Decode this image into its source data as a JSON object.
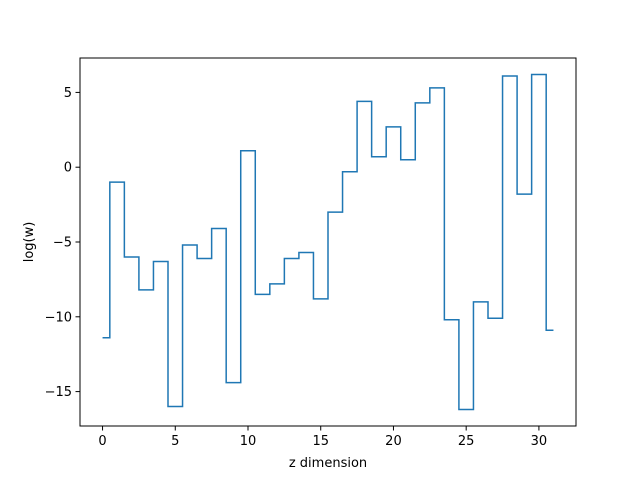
{
  "chart_data": {
    "type": "line",
    "drawstyle": "steps-mid",
    "title": "",
    "xlabel": "z dimension",
    "ylabel": "log(w)",
    "xlim": [
      -1.55,
      32.55
    ],
    "ylim": [
      -17.3,
      7.3
    ],
    "xticks": [
      0,
      5,
      10,
      15,
      20,
      25,
      30
    ],
    "yticks": [
      -15,
      -10,
      -5,
      0,
      5
    ],
    "grid": false,
    "legend": "none",
    "series": [
      {
        "color": "#1f77b4",
        "x": [
          0,
          1,
          2,
          3,
          4,
          5,
          6,
          7,
          8,
          9,
          10,
          11,
          12,
          13,
          14,
          15,
          16,
          17,
          18,
          19,
          20,
          21,
          22,
          23,
          24,
          25,
          26,
          27,
          28,
          29,
          30,
          31
        ],
        "y": [
          -11.4,
          -1.0,
          -6.0,
          -8.2,
          -6.3,
          -16.0,
          -5.2,
          -6.1,
          -4.1,
          -14.4,
          1.1,
          -8.5,
          -7.8,
          -6.1,
          -5.7,
          -8.8,
          -3.0,
          -0.3,
          4.4,
          0.7,
          2.7,
          0.5,
          4.3,
          5.3,
          -10.2,
          -16.2,
          -9.0,
          -10.1,
          6.1,
          -1.8,
          6.2,
          -10.9
        ]
      }
    ]
  }
}
